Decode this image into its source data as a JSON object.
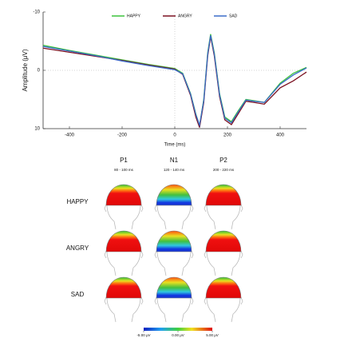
{
  "chart_data": {
    "type": "line",
    "x": [
      -500,
      -400,
      -300,
      -200,
      -100,
      0,
      30,
      60,
      80,
      94,
      110,
      125,
      136,
      150,
      170,
      190,
      215,
      240,
      270,
      300,
      340,
      400,
      450,
      500
    ],
    "series": [
      {
        "name": "HAPPY",
        "color": "#3cc23c",
        "values": [
          -4.3,
          -3.4,
          -2.6,
          -1.8,
          -1.0,
          -0.3,
          0.5,
          4,
          7.5,
          9.5,
          5,
          -3,
          -6.2,
          -3,
          4,
          8,
          8.8,
          7,
          5,
          5.2,
          5.5,
          2.2,
          0.5,
          -0.5
        ]
      },
      {
        "name": "ANGRY",
        "color": "#7a1020",
        "values": [
          -3.8,
          -3.1,
          -2.4,
          -1.7,
          -0.9,
          -0.2,
          0.7,
          4.3,
          8,
          9.8,
          5.5,
          -2.5,
          -5.8,
          -2.5,
          4.5,
          8.5,
          9.3,
          7.5,
          5.3,
          5.5,
          5.8,
          3,
          1.8,
          0.3
        ]
      },
      {
        "name": "SAD",
        "color": "#3a6cc8",
        "values": [
          -4.1,
          -3.3,
          -2.5,
          -1.6,
          -0.8,
          -0.1,
          0.6,
          4.1,
          7.6,
          9.4,
          5.2,
          -2.8,
          -6,
          -2.8,
          4.2,
          8.2,
          9,
          7.2,
          5.1,
          5.3,
          5.5,
          2.4,
          0.8,
          -0.4
        ]
      }
    ],
    "xlim": [
      -500,
      500
    ],
    "xticks": [
      -400,
      -200,
      0,
      200,
      400
    ],
    "ylim": [
      -10,
      10
    ],
    "yticks": [
      -10,
      0,
      10
    ],
    "invert_y": true,
    "x_label": "Time (ms)",
    "y_label": "Amplitude (μV)",
    "legend": "top"
  },
  "topomaps": {
    "columns": [
      {
        "component": "P1",
        "window": "80 - 100 ms"
      },
      {
        "component": "N1",
        "window": "120 - 140 ms"
      },
      {
        "component": "P2",
        "window": "200 - 220 ms"
      }
    ],
    "rows": [
      "HAPPY",
      "ANGRY",
      "SAD"
    ],
    "colorbar_ticks": [
      {
        "value": -5,
        "label": "-5.00 μV"
      },
      {
        "value": 0,
        "label": "0.00 μV"
      },
      {
        "value": 5,
        "label": "5.00 μV"
      }
    ],
    "colorbar_range": [
      -5,
      5
    ]
  }
}
